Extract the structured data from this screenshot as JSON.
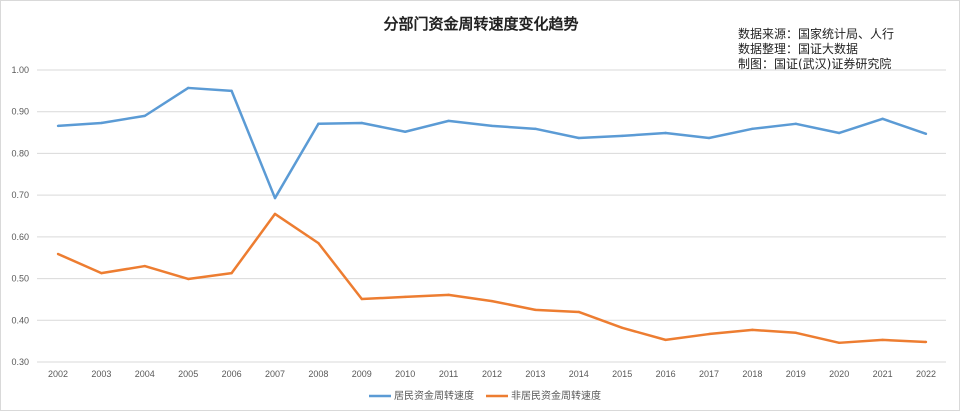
{
  "chart_data": {
    "type": "line",
    "title": "分部门资金周转速度变化趋势",
    "annotations": [
      "数据来源：国家统计局、人行",
      "数据整理：国证大数据",
      "制图：国证(武汉)证券研究院"
    ],
    "x": [
      "2002",
      "2003",
      "2004",
      "2005",
      "2006",
      "2007",
      "2008",
      "2009",
      "2010",
      "2011",
      "2012",
      "2013",
      "2014",
      "2015",
      "2016",
      "2017",
      "2018",
      "2019",
      "2020",
      "2021",
      "2022"
    ],
    "ylim": [
      0.3,
      1.0
    ],
    "yticks": [
      "0.30",
      "0.40",
      "0.50",
      "0.60",
      "0.70",
      "0.80",
      "0.90",
      "1.00"
    ],
    "grid": true,
    "legend_position": "bottom",
    "series": [
      {
        "name": "居民资金周转速度",
        "color": "#5b9bd5",
        "values": [
          0.866,
          0.873,
          0.89,
          0.957,
          0.95,
          0.693,
          0.871,
          0.873,
          0.852,
          0.878,
          0.866,
          0.859,
          0.837,
          0.842,
          0.849,
          0.837,
          0.859,
          0.871,
          0.849,
          0.883,
          0.847
        ]
      },
      {
        "name": "非居民资金周转速度",
        "color": "#ed7d31",
        "values": [
          0.559,
          0.513,
          0.53,
          0.499,
          0.513,
          0.655,
          0.585,
          0.451,
          0.456,
          0.461,
          0.446,
          0.425,
          0.42,
          0.382,
          0.353,
          0.367,
          0.377,
          0.37,
          0.346,
          0.353,
          0.348
        ]
      }
    ]
  }
}
